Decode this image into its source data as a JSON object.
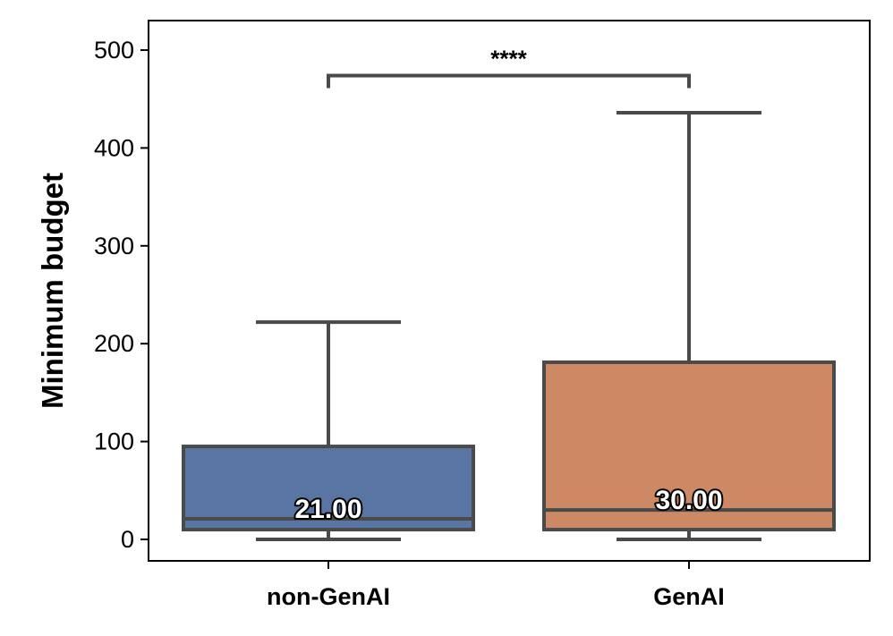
{
  "chart_data": {
    "type": "box",
    "ylabel": "Minimum budget",
    "ylim": [
      -20,
      525
    ],
    "yticks": [
      0,
      100,
      200,
      300,
      400,
      500
    ],
    "grid": false,
    "categories": [
      "non-GenAI",
      "GenAI"
    ],
    "boxes": [
      {
        "category": "non-GenAI",
        "whisker_low": 0,
        "q1": 10,
        "median": 21,
        "q3": 95,
        "whisker_high": 222,
        "median_label": "21.00",
        "color": "#5975a4"
      },
      {
        "category": "GenAI",
        "whisker_low": 0,
        "q1": 10,
        "median": 30,
        "q3": 181,
        "whisker_high": 436,
        "median_label": "30.00",
        "color": "#cc8963"
      }
    ],
    "significance": {
      "between": [
        "non-GenAI",
        "GenAI"
      ],
      "label": "****",
      "y": 474
    }
  },
  "colors": {
    "box_edge": "#4a4a4a",
    "axis": "#000000"
  }
}
